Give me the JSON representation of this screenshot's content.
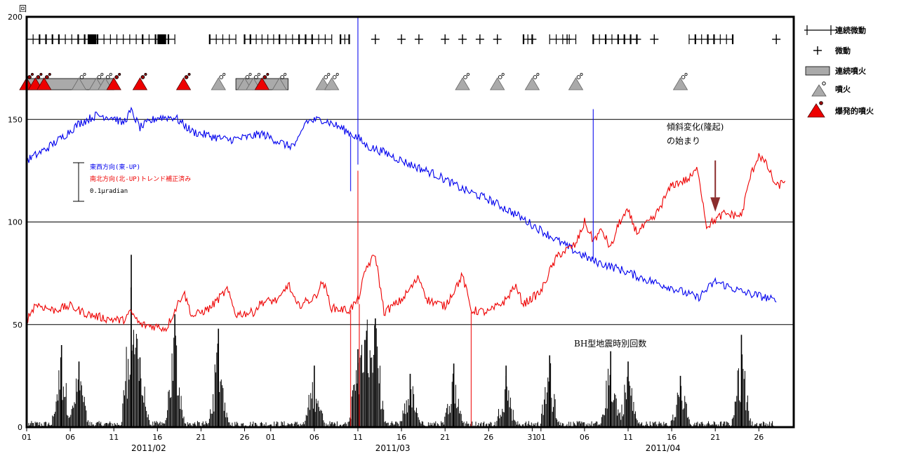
{
  "chart_data": {
    "type": "line",
    "y_unit_label": "回",
    "ylim": [
      0,
      200
    ],
    "y_ticks": [
      0,
      50,
      100,
      150,
      200
    ],
    "x_range": [
      "2011-02-01",
      "2011-04-29"
    ],
    "x_tick_labels": [
      {
        "date": "2011-02-01",
        "label": "01"
      },
      {
        "date": "2011-02-06",
        "label": "06"
      },
      {
        "date": "2011-02-11",
        "label": "11"
      },
      {
        "date": "2011-02-16",
        "label": "16"
      },
      {
        "date": "2011-02-21",
        "label": "21"
      },
      {
        "date": "2011-02-26",
        "label": "26"
      },
      {
        "date": "2011-03-01",
        "label": "01"
      },
      {
        "date": "2011-03-06",
        "label": "06"
      },
      {
        "date": "2011-03-11",
        "label": "11"
      },
      {
        "date": "2011-03-16",
        "label": "16"
      },
      {
        "date": "2011-03-21",
        "label": "21"
      },
      {
        "date": "2011-03-26",
        "label": "26"
      },
      {
        "date": "2011-03-31",
        "label": "31"
      },
      {
        "date": "2011-04-01",
        "label": "01"
      },
      {
        "date": "2011-04-06",
        "label": "06"
      },
      {
        "date": "2011-04-11",
        "label": "11"
      },
      {
        "date": "2011-04-16",
        "label": "16"
      },
      {
        "date": "2011-04-21",
        "label": "21"
      },
      {
        "date": "2011-04-26",
        "label": "26"
      }
    ],
    "month_labels": [
      {
        "date": "2011-02-15",
        "label": "2011/02"
      },
      {
        "date": "2011-03-15",
        "label": "2011/03"
      },
      {
        "date": "2011-04-15",
        "label": "2011/04"
      }
    ],
    "gridlines": [
      50,
      100,
      150
    ],
    "series": [
      {
        "name": "東西方向(東-UP)",
        "color": "#0000ee",
        "points": [
          [
            "2011-02-01",
            130
          ],
          [
            "2011-02-03",
            135
          ],
          [
            "2011-02-05",
            141
          ],
          [
            "2011-02-07",
            148
          ],
          [
            "2011-02-09",
            152
          ],
          [
            "2011-02-11",
            151
          ],
          [
            "2011-02-12",
            148
          ],
          [
            "2011-02-13",
            154
          ],
          [
            "2011-02-14",
            146
          ],
          [
            "2011-02-16",
            151
          ],
          [
            "2011-02-18",
            151
          ],
          [
            "2011-02-20",
            144
          ],
          [
            "2011-02-22",
            142
          ],
          [
            "2011-02-24",
            140
          ],
          [
            "2011-02-26",
            141
          ],
          [
            "2011-02-28",
            143
          ],
          [
            "2011-03-02",
            139
          ],
          [
            "2011-03-03",
            137
          ],
          [
            "2011-03-04",
            138
          ],
          [
            "2011-03-05",
            149
          ],
          [
            "2011-03-07",
            150
          ],
          [
            "2011-03-09",
            146
          ],
          [
            "2011-03-11",
            141
          ],
          [
            "2011-03-12",
            137
          ],
          [
            "2011-03-14",
            134
          ],
          [
            "2011-03-17",
            128
          ],
          [
            "2011-03-20",
            123
          ],
          [
            "2011-03-23",
            116
          ],
          [
            "2011-03-26",
            111
          ],
          [
            "2011-03-29",
            104
          ],
          [
            "2011-04-01",
            96
          ],
          [
            "2011-04-04",
            88
          ],
          [
            "2011-04-07",
            81
          ],
          [
            "2011-04-10",
            77
          ],
          [
            "2011-04-13",
            72
          ],
          [
            "2011-04-16",
            68
          ],
          [
            "2011-04-19",
            63
          ],
          [
            "2011-04-21",
            71
          ],
          [
            "2011-04-24",
            66
          ],
          [
            "2011-04-27",
            63
          ],
          [
            "2011-04-28",
            61
          ]
        ]
      },
      {
        "name": "南北方向(北-UP)トレンド補正済み",
        "color": "#ee0000",
        "points": [
          [
            "2011-02-01",
            52
          ],
          [
            "2011-02-02",
            60
          ],
          [
            "2011-02-04",
            57
          ],
          [
            "2011-02-06",
            59
          ],
          [
            "2011-02-08",
            55
          ],
          [
            "2011-02-10",
            53
          ],
          [
            "2011-02-12",
            52
          ],
          [
            "2011-02-13",
            56
          ],
          [
            "2011-02-14",
            50
          ],
          [
            "2011-02-16",
            49
          ],
          [
            "2011-02-17",
            48
          ],
          [
            "2011-02-19",
            66
          ],
          [
            "2011-02-20",
            54
          ],
          [
            "2011-02-22",
            58
          ],
          [
            "2011-02-24",
            67
          ],
          [
            "2011-02-25",
            55
          ],
          [
            "2011-02-27",
            56
          ],
          [
            "2011-02-28",
            61
          ],
          [
            "2011-03-02",
            62
          ],
          [
            "2011-03-03",
            70
          ],
          [
            "2011-03-04",
            59
          ],
          [
            "2011-03-06",
            63
          ],
          [
            "2011-03-07",
            71
          ],
          [
            "2011-03-08",
            58
          ],
          [
            "2011-03-10",
            57
          ],
          [
            "2011-03-11",
            62
          ],
          [
            "2011-03-12",
            78
          ],
          [
            "2011-03-13",
            84
          ],
          [
            "2011-03-14",
            56
          ],
          [
            "2011-03-16",
            62
          ],
          [
            "2011-03-18",
            73
          ],
          [
            "2011-03-19",
            62
          ],
          [
            "2011-03-21",
            59
          ],
          [
            "2011-03-23",
            74
          ],
          [
            "2011-03-24",
            57
          ],
          [
            "2011-03-26",
            56
          ],
          [
            "2011-03-28",
            62
          ],
          [
            "2011-03-29",
            69
          ],
          [
            "2011-03-30",
            60
          ],
          [
            "2011-04-01",
            66
          ],
          [
            "2011-04-02",
            76
          ],
          [
            "2011-04-03",
            84
          ],
          [
            "2011-04-05",
            89
          ],
          [
            "2011-04-06",
            100
          ],
          [
            "2011-04-07",
            91
          ],
          [
            "2011-04-08",
            96
          ],
          [
            "2011-04-09",
            87
          ],
          [
            "2011-04-10",
            100
          ],
          [
            "2011-04-11",
            105
          ],
          [
            "2011-04-12",
            95
          ],
          [
            "2011-04-14",
            102
          ],
          [
            "2011-04-16",
            118
          ],
          [
            "2011-04-18",
            121
          ],
          [
            "2011-04-19",
            126
          ],
          [
            "2011-04-20",
            98
          ],
          [
            "2011-04-22",
            104
          ],
          [
            "2011-04-24",
            103
          ],
          [
            "2011-04-25",
            122
          ],
          [
            "2011-04-26",
            133
          ],
          [
            "2011-04-27",
            127
          ],
          [
            "2011-04-28",
            117
          ],
          [
            "2011-04-29",
            120
          ]
        ]
      }
    ],
    "spikes": [
      {
        "date": "2011-03-11",
        "series": "東西方向(東-UP)",
        "from": 128,
        "to": 200
      },
      {
        "date": "2011-03-10",
        "series": "東西方向(東-UP)",
        "from": 142,
        "to": 115
      },
      {
        "date": "2011-04-07",
        "series": "東西方向(東-UP)",
        "from": 82,
        "to": 155
      },
      {
        "date": "2011-03-10",
        "series": "南北方向(北-UP)トレンド補正済み",
        "from": 57,
        "to": 0
      },
      {
        "date": "2011-03-11",
        "series": "南北方向(北-UP)トレンド補正済み",
        "from": 60,
        "to": 125
      },
      {
        "date": "2011-03-11",
        "series": "南北方向(北-UP)トレンド補正済み",
        "from": 60,
        "to": 0
      },
      {
        "date": "2011-03-24",
        "series": "南北方向(北-UP)トレンド補正済み",
        "from": 56,
        "to": 0
      }
    ],
    "bh_counts": {
      "label": "BH型地震時別回数",
      "peaks": [
        {
          "date": "2011-02-05",
          "value": 40
        },
        {
          "date": "2011-02-07",
          "value": 32
        },
        {
          "date": "2011-02-13",
          "value": 84
        },
        {
          "date": "2011-02-14",
          "value": 34
        },
        {
          "date": "2011-02-18",
          "value": 55
        },
        {
          "date": "2011-02-23",
          "value": 48
        },
        {
          "date": "2011-03-06",
          "value": 30
        },
        {
          "date": "2011-03-11",
          "value": 38
        },
        {
          "date": "2011-03-12",
          "value": 47
        },
        {
          "date": "2011-03-13",
          "value": 53
        },
        {
          "date": "2011-03-17",
          "value": 26
        },
        {
          "date": "2011-03-22",
          "value": 31
        },
        {
          "date": "2011-03-28",
          "value": 30
        },
        {
          "date": "2011-04-02",
          "value": 35
        },
        {
          "date": "2011-04-09",
          "value": 37
        },
        {
          "date": "2011-04-11",
          "value": 32
        },
        {
          "date": "2011-04-17",
          "value": 25
        },
        {
          "date": "2011-04-24",
          "value": 45
        }
      ]
    },
    "events": {
      "continuous_tremor_label": "連続微動",
      "tremor_label": "微動",
      "continuous_eruption_label": "連続噴火",
      "eruption_label": "噴火",
      "explosive_eruption_label": "爆発的噴火",
      "continuous_tremor_segments": [
        [
          "2011-02-01",
          "2011-02-18"
        ],
        [
          "2011-02-22",
          "2011-02-25"
        ],
        [
          "2011-02-26",
          "2011-03-02"
        ],
        [
          "2011-03-02",
          "2011-03-08"
        ],
        [
          "2011-03-09",
          "2011-03-10"
        ],
        [
          "2011-03-30",
          "2011-03-31"
        ],
        [
          "2011-04-02",
          "2011-04-05"
        ],
        [
          "2011-04-07",
          "2011-04-12"
        ],
        [
          "2011-04-18",
          "2011-04-23"
        ]
      ],
      "continuous_tremor_blocks": [
        [
          "2011-02-08",
          "2011-02-09"
        ],
        [
          "2011-02-16",
          "2011-02-17"
        ]
      ],
      "tremor_markers": [
        "2011-03-13",
        "2011-03-16",
        "2011-03-18",
        "2011-03-21",
        "2011-03-23",
        "2011-03-25",
        "2011-03-27",
        "2011-03-31",
        "2011-04-04",
        "2011-04-12",
        "2011-04-14",
        "2011-04-28"
      ],
      "continuous_eruption_spans": [
        [
          "2011-02-01",
          "2011-02-11"
        ],
        [
          "2011-02-25",
          "2011-03-03"
        ]
      ],
      "eruption_markers": [
        "2011-02-07",
        "2011-02-09",
        "2011-02-10",
        "2011-02-23",
        "2011-02-26",
        "2011-02-27",
        "2011-03-02",
        "2011-03-07",
        "2011-03-08",
        "2011-03-23",
        "2011-03-27",
        "2011-03-31",
        "2011-04-05",
        "2011-04-17"
      ],
      "explosive_markers": [
        "2011-02-01",
        "2011-02-02",
        "2011-02-03",
        "2011-02-11",
        "2011-02-14",
        "2011-02-19",
        "2011-02-28"
      ]
    },
    "inner_legend": {
      "ew_label": "東西方向(東-UP)",
      "ns_label": "南北方向(北-UP)トレンド補正済み",
      "scale_label": "0.1μradian"
    },
    "annotations": {
      "onset_line1": "傾斜変化(隆起)",
      "onset_line2": "の始まり",
      "onset_date": "2011-04-21"
    }
  }
}
